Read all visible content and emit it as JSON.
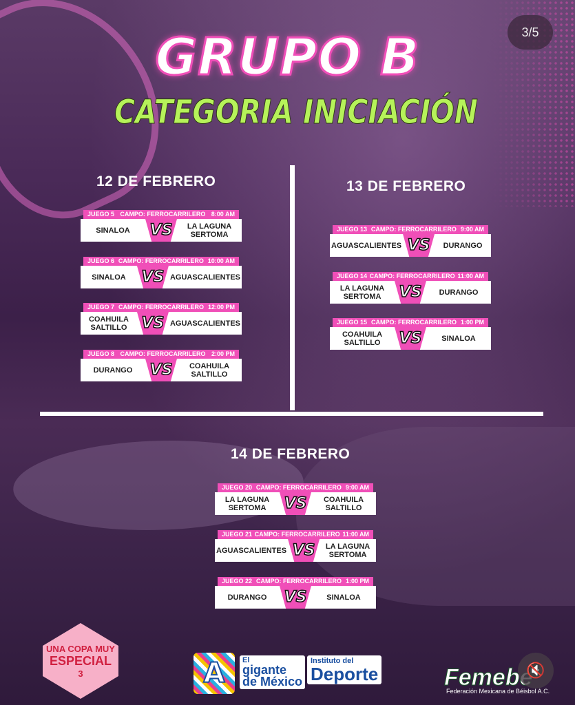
{
  "pager": "3/5",
  "title": "GRUPO B",
  "subtitle": "CATEGORIA INICIACIÓN",
  "colors": {
    "accent": "#f04fb8",
    "subtitle": "#b6f25a",
    "background": "#3a1f45"
  },
  "days": [
    {
      "label": "12 DE FEBRERO",
      "games": [
        {
          "game": "JUEGO 5",
          "field": "CAMPO: FERROCARRILERO",
          "time": "8:00 AM",
          "home": "SINALOA",
          "vs": "VS",
          "away": "LA LAGUNA SERTOMA"
        },
        {
          "game": "JUEGO 6",
          "field": "CAMPO: FERROCARRILERO",
          "time": "10:00 AM",
          "home": "SINALOA",
          "vs": "VS",
          "away": "AGUASCALIENTES"
        },
        {
          "game": "JUEGO 7",
          "field": "CAMPO: FERROCARRILERO",
          "time": "12:00 PM",
          "home": "COAHUILA SALTILLO",
          "vs": "VS",
          "away": "AGUASCALIENTES"
        },
        {
          "game": "JUEGO 8",
          "field": "CAMPO: FERROCARRILERO",
          "time": "2:00 PM",
          "home": "DURANGO",
          "vs": "VS",
          "away": "COAHUILA SALTILLO"
        }
      ]
    },
    {
      "label": "13 DE FEBRERO",
      "games": [
        {
          "game": "JUEGO 13",
          "field": "CAMPO: FERROCARRILERO",
          "time": "9:00 AM",
          "home": "AGUASCALIENTES",
          "vs": "VS",
          "away": "DURANGO"
        },
        {
          "game": "JUEGO 14",
          "field": "CAMPO: FERROCARRILERO",
          "time": "11:00 AM",
          "home": "LA LAGUNA SERTOMA",
          "vs": "VS",
          "away": "DURANGO"
        },
        {
          "game": "JUEGO 15",
          "field": "CAMPO: FERROCARRILERO",
          "time": "1:00 PM",
          "home": "COAHUILA SALTILLO",
          "vs": "VS",
          "away": "SINALOA"
        }
      ]
    },
    {
      "label": "14 DE FEBRERO",
      "games": [
        {
          "game": "JUEGO 20",
          "field": "CAMPO: FERROCARRILERO",
          "time": "9:00 AM",
          "home": "LA LAGUNA SERTOMA",
          "vs": "VS",
          "away": "COAHUILA SALTILLO"
        },
        {
          "game": "JUEGO 21",
          "field": "CAMPO: FERROCARRILERO",
          "time": "11:00 AM",
          "home": "AGUASCALIENTES",
          "vs": "VS",
          "away": "LA LAGUNA SERTOMA"
        },
        {
          "game": "JUEGO 22",
          "field": "CAMPO: FERROCARRILERO",
          "time": "1:00 PM",
          "home": "DURANGO",
          "vs": "VS",
          "away": "SINALOA"
        }
      ]
    }
  ],
  "logos": {
    "copa": {
      "line1": "UNA COPA MUY",
      "line2": "ESPECIAL",
      "line3": "3"
    },
    "a_mark": "A",
    "gigante": {
      "line1": "El",
      "line2": "gigante",
      "line3": "de México"
    },
    "instituto": {
      "line1": "Instituto del",
      "line2": "Deporte"
    },
    "femebe": {
      "name": "Femebe",
      "sub": "Federación Mexicana de Béisbol A.C."
    }
  },
  "icons": {
    "mute": "speaker-muted-icon"
  }
}
